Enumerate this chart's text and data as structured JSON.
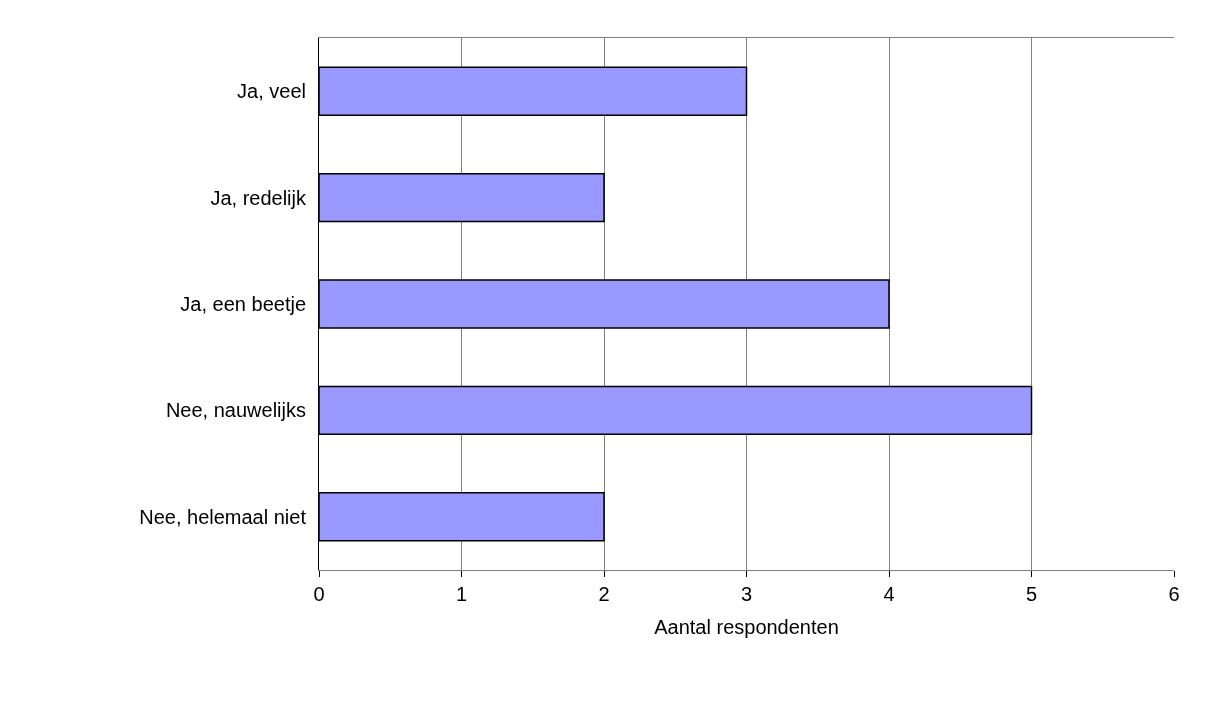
{
  "chart_data": {
    "type": "bar",
    "orientation": "horizontal",
    "xlabel": "Aantal respondenten",
    "categories": [
      "Ja, veel",
      "Ja, redelijk",
      "Ja, een beetje",
      "Nee, nauwelijks",
      "Nee, helemaal niet"
    ],
    "values": [
      3,
      2,
      4,
      5,
      2
    ],
    "color": "#9999ff",
    "xlim": [
      0,
      6
    ],
    "xticks": [
      0,
      1,
      2,
      3,
      4,
      5,
      6
    ],
    "grid": "x"
  }
}
